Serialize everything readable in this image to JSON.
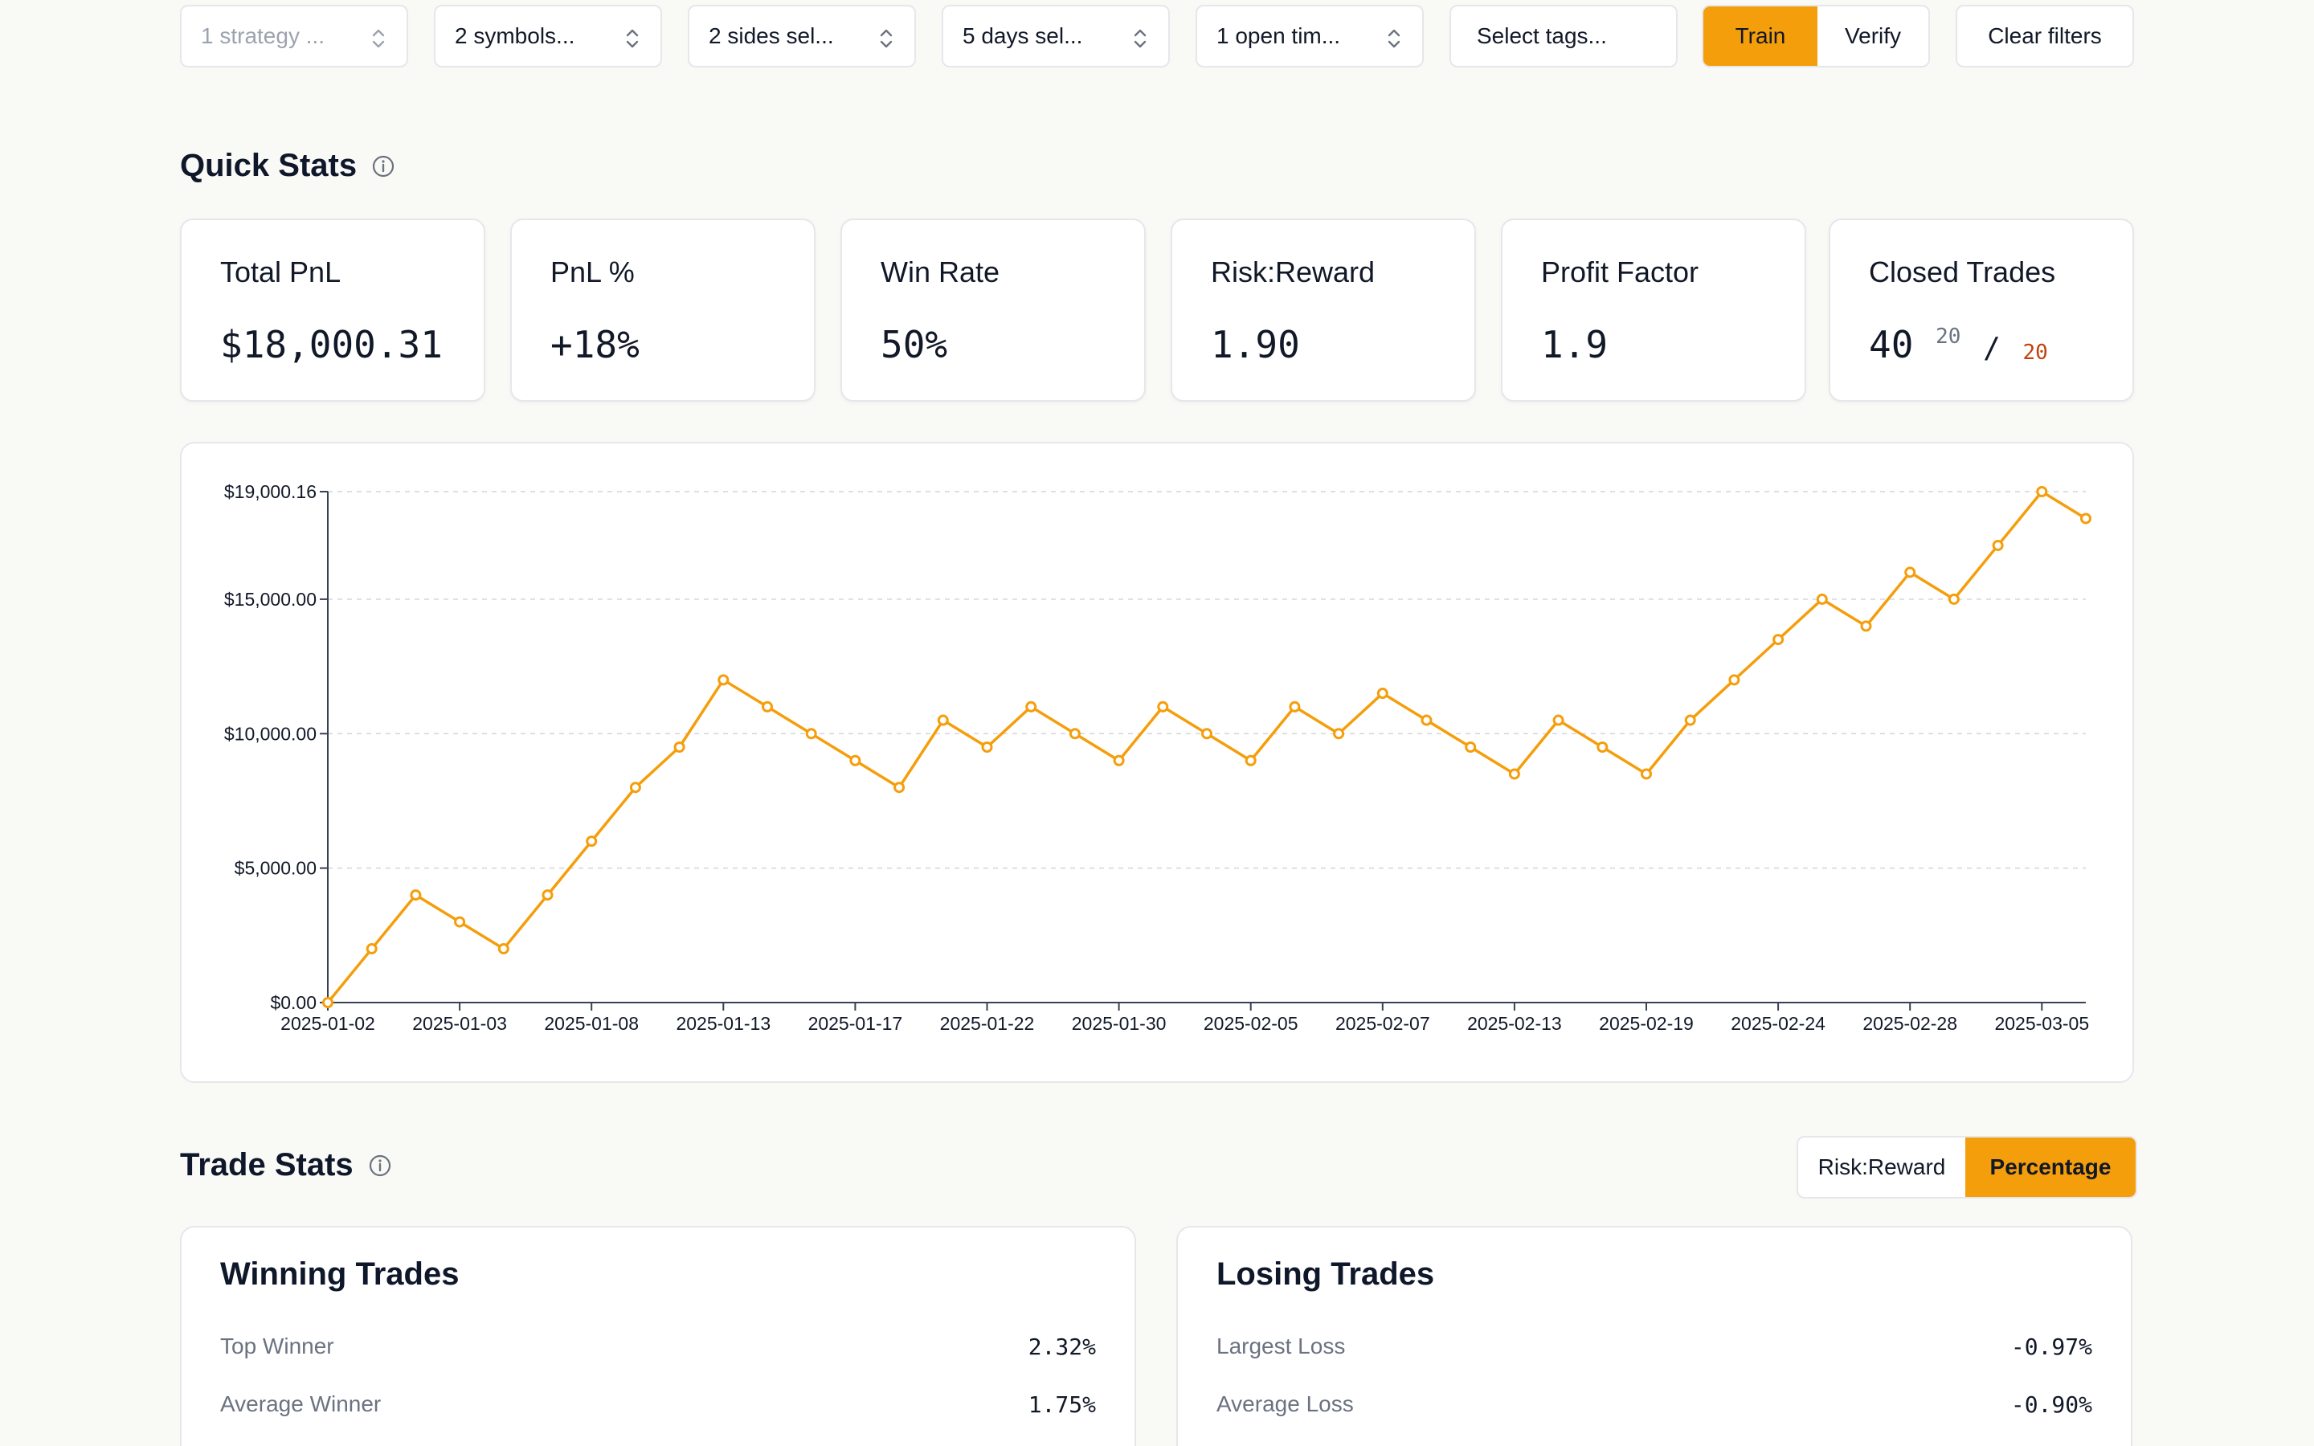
{
  "filters": {
    "strategy": "1 strategy ...",
    "symbols": "2 symbols...",
    "sides": "2 sides sel...",
    "days": "5 days sel...",
    "open_time": "1 open tim...",
    "tags_placeholder": "Select tags...",
    "mode_train": "Train",
    "mode_verify": "Verify",
    "clear": "Clear filters"
  },
  "quick_stats": {
    "title": "Quick Stats",
    "cards": [
      {
        "label": "Total PnL",
        "value": "$18,000.31"
      },
      {
        "label": "PnL %",
        "value": "+18%"
      },
      {
        "label": "Win Rate",
        "value": "50%"
      },
      {
        "label": "Risk:Reward",
        "value": "1.90"
      },
      {
        "label": "Profit Factor",
        "value": "1.9"
      },
      {
        "label": "Closed Trades",
        "value": "40",
        "wins": "20",
        "slash": "/",
        "losses": "20"
      }
    ]
  },
  "chart_data": {
    "type": "line",
    "ylim": [
      0,
      19000.16
    ],
    "y_ticks": [
      {
        "value": 0,
        "label": "$0.00"
      },
      {
        "value": 5000,
        "label": "$5,000.00"
      },
      {
        "value": 10000,
        "label": "$10,000.00"
      },
      {
        "value": 15000,
        "label": "$15,000.00"
      },
      {
        "value": 19000.16,
        "label": "$19,000.16"
      }
    ],
    "x_tick_labels": [
      "2025-01-02",
      "2025-01-03",
      "2025-01-08",
      "2025-01-13",
      "2025-01-17",
      "2025-01-22",
      "2025-01-30",
      "2025-02-05",
      "2025-02-07",
      "2025-02-13",
      "2025-02-19",
      "2025-02-24",
      "2025-02-28",
      "2025-03-05"
    ],
    "x_tick_every": 3,
    "values": [
      0,
      2000,
      4000,
      3000,
      2000,
      4000,
      6000,
      8000,
      9500,
      12000,
      11000,
      10000,
      9000,
      8000,
      10500,
      9500,
      11000,
      10000,
      9000,
      11000,
      10000,
      9000,
      11000,
      10000,
      11500,
      10500,
      9500,
      8500,
      10500,
      9500,
      8500,
      10500,
      12000,
      13500,
      15000,
      14000,
      16000,
      15000,
      17000,
      19000.16,
      18000.31
    ],
    "color": "#f59e0b",
    "grid": true
  },
  "trade_stats": {
    "title": "Trade Stats",
    "toggle_rr": "Risk:Reward",
    "toggle_pct": "Percentage",
    "winning": {
      "title": "Winning Trades",
      "rows": [
        {
          "label": "Top Winner",
          "value": "2.32%"
        },
        {
          "label": "Average Winner",
          "value": "1.75%"
        }
      ]
    },
    "losing": {
      "title": "Losing Trades",
      "rows": [
        {
          "label": "Largest Loss",
          "value": "-0.97%"
        },
        {
          "label": "Average Loss",
          "value": "-0.90%"
        }
      ]
    }
  },
  "icons": {
    "chevron": "chevron-up-down-icon",
    "info": "info-icon"
  },
  "colors": {
    "accent": "#f59e0b",
    "loss": "#c2410c"
  }
}
